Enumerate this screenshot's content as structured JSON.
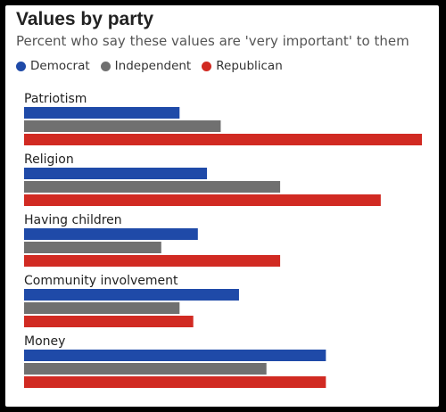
{
  "chart_data": {
    "type": "bar",
    "orientation": "horizontal",
    "title": "Values by party",
    "subtitle": "Percent who say these values are 'very important' to them",
    "categories": [
      "Patriotism",
      "Religion",
      "Having children",
      "Community involvement",
      "Money"
    ],
    "series": [
      {
        "name": "Democrat",
        "color": "#1f4aa8",
        "values": [
          34,
          40,
          38,
          47,
          66
        ]
      },
      {
        "name": "Independent",
        "color": "#707070",
        "values": [
          43,
          56,
          30,
          34,
          53
        ]
      },
      {
        "name": "Republican",
        "color": "#d12a22",
        "values": [
          87,
          78,
          56,
          37,
          66
        ]
      }
    ],
    "xlim": [
      0,
      87
    ],
    "grid": false,
    "legend": "top-left"
  }
}
